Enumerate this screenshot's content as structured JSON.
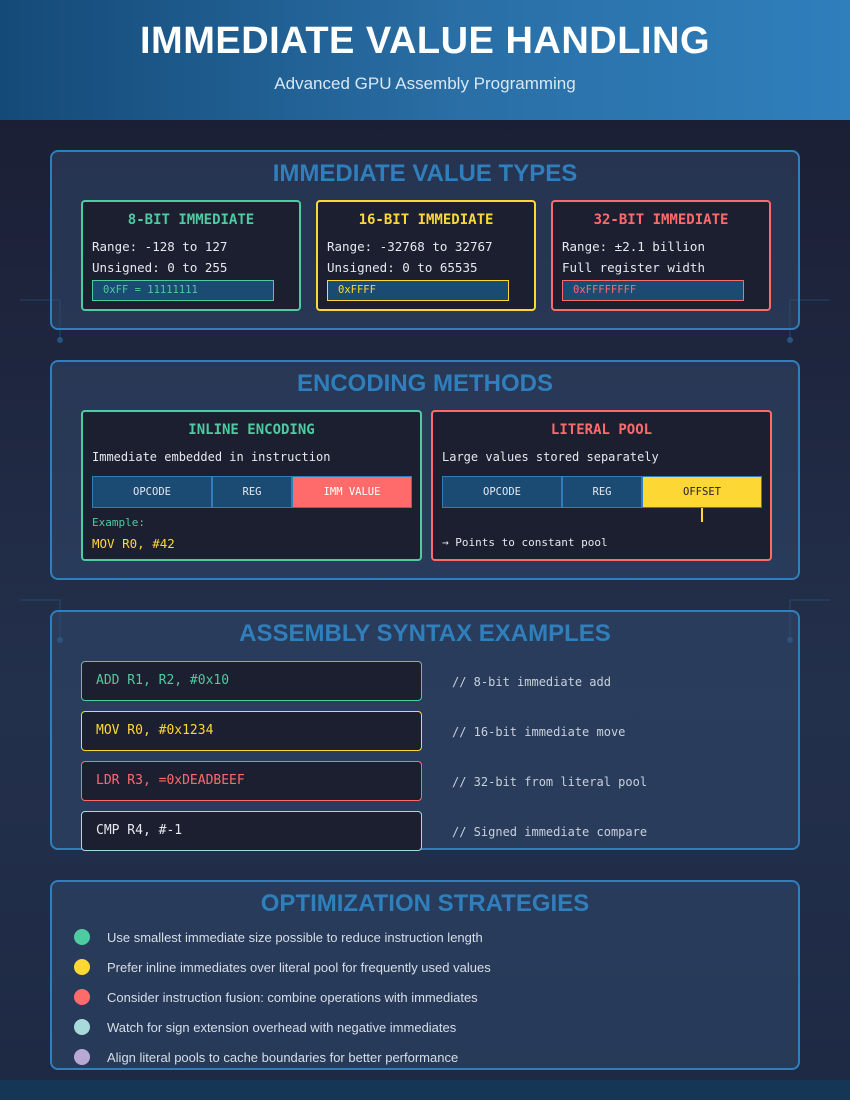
{
  "header": {
    "title": "IMMEDIATE VALUE HANDLING",
    "subtitle": "Advanced GPU Assembly Programming"
  },
  "colors": {
    "accent": "#2f7fbc",
    "green": "#4ecba0",
    "yellow": "#fdd835",
    "red": "#ff6b6b",
    "teal": "#a8dadc",
    "purple": "#b8a9d4"
  },
  "types": {
    "title": "IMMEDIATE VALUE TYPES",
    "cards": [
      {
        "title": "8-BIT IMMEDIATE",
        "line1": "Range: -128 to 127",
        "line2": "Unsigned: 0 to 255",
        "code": "0xFF = 11111111"
      },
      {
        "title": "16-BIT IMMEDIATE",
        "line1": "Range: -32768 to 32767",
        "line2": "Unsigned: 0 to 65535",
        "code": "0xFFFF"
      },
      {
        "title": "32-BIT IMMEDIATE",
        "line1": "Range: ±2.1 billion",
        "line2": "Full register width",
        "code": "0xFFFFFFFF"
      }
    ]
  },
  "encoding": {
    "title": "ENCODING METHODS",
    "inline": {
      "title": "INLINE ENCODING",
      "desc": "Immediate embedded in instruction",
      "fields": [
        "OPCODE",
        "REG",
        "IMM VALUE"
      ],
      "example_label": "Example:",
      "example_code": "MOV R0, #42"
    },
    "pool": {
      "title": "LITERAL POOL",
      "desc": "Large values stored separately",
      "fields": [
        "OPCODE",
        "REG",
        "OFFSET"
      ],
      "note": "→ Points to constant pool"
    }
  },
  "syntax": {
    "title": "ASSEMBLY SYNTAX EXAMPLES",
    "rows": [
      {
        "code": "ADD R1, R2, #0x10",
        "comment": "// 8-bit immediate add"
      },
      {
        "code": "MOV R0, #0x1234",
        "comment": "// 16-bit immediate move"
      },
      {
        "code": "LDR R3, =0xDEADBEEF",
        "comment": "// 32-bit from literal pool"
      },
      {
        "code": "CMP R4, #-1",
        "comment": "// Signed immediate compare"
      }
    ]
  },
  "strategies": {
    "title": "OPTIMIZATION STRATEGIES",
    "items": [
      "Use smallest immediate size possible to reduce instruction length",
      "Prefer inline immediates over literal pool for frequently used values",
      "Consider instruction fusion: combine operations with immediates",
      "Watch for sign extension overhead with negative immediates",
      "Align literal pools to cache boundaries for better performance"
    ]
  }
}
